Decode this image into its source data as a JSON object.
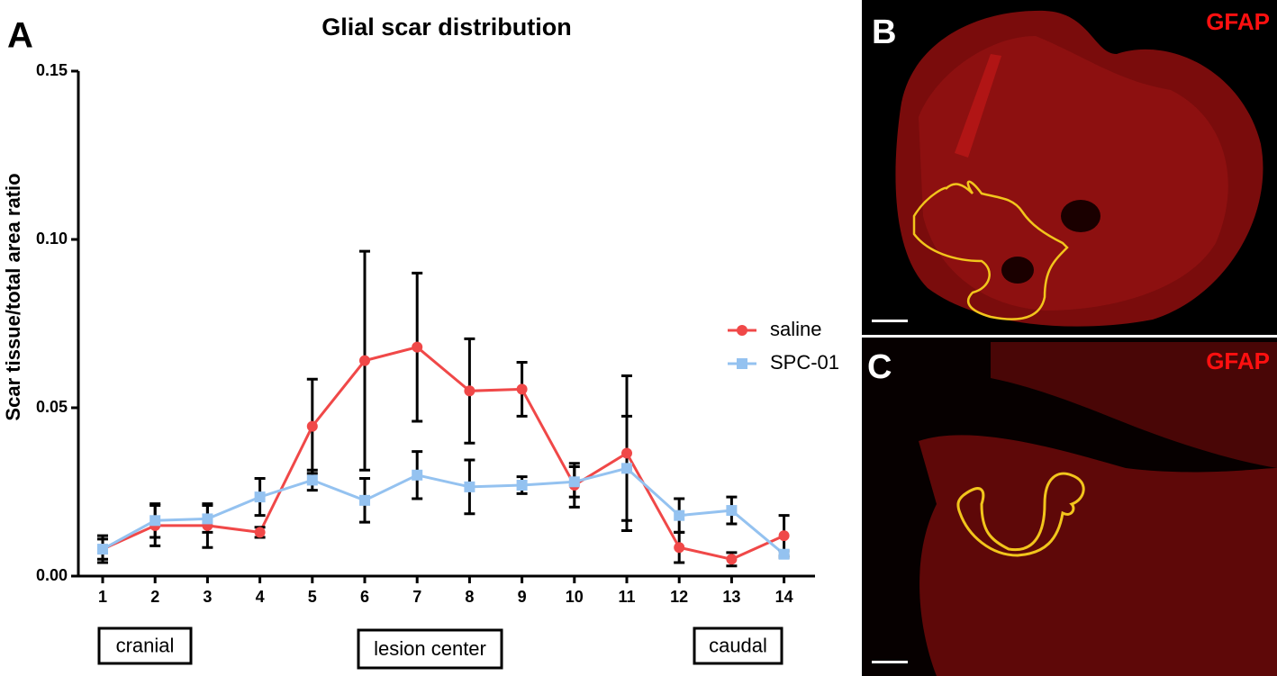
{
  "chart_data": {
    "type": "line",
    "title": "Glial scar distribution",
    "y_label": "Scar tissue/total area ratio",
    "categories": [
      "1",
      "2",
      "3",
      "4",
      "5",
      "6",
      "7",
      "8",
      "9",
      "10",
      "11",
      "12",
      "13",
      "14"
    ],
    "series": [
      {
        "name": "saline",
        "color": "#f04848",
        "marker": "circle",
        "values": [
          0.008,
          0.015,
          0.015,
          0.013,
          0.0445,
          0.064,
          0.068,
          0.055,
          0.0555,
          0.027,
          0.0365,
          0.0085,
          0.005,
          0.012
        ],
        "errors": [
          0.004,
          0.006,
          0.0065,
          0.0015,
          0.014,
          0.0325,
          0.022,
          0.0155,
          0.008,
          0.0065,
          0.023,
          0.0045,
          0.002,
          0.006
        ]
      },
      {
        "name": "SPC-01",
        "color": "#94c2f0",
        "marker": "square",
        "values": [
          0.008,
          0.0165,
          0.017,
          0.0235,
          0.0285,
          0.0225,
          0.03,
          0.0265,
          0.027,
          0.028,
          0.032,
          0.018,
          0.0195,
          0.0065
        ],
        "errors": [
          0.003,
          0.005,
          0.004,
          0.0055,
          0.003,
          0.0065,
          0.007,
          0.008,
          0.0025,
          0.0045,
          0.0155,
          0.005,
          0.004,
          0.001
        ]
      }
    ],
    "ylim": [
      0,
      0.15
    ],
    "yticks": [
      {
        "value": 0,
        "label": "0.00"
      },
      0.05,
      {
        "value": 0.1,
        "label": "0.10"
      },
      0.15
    ],
    "legend": "right",
    "annotations": [
      "cranial",
      "lesion center",
      "caudal"
    ]
  },
  "panels": {
    "a": "A",
    "b": {
      "label": "B",
      "stain": "GFAP"
    },
    "c": {
      "label": "C",
      "stain": "GFAP"
    }
  }
}
